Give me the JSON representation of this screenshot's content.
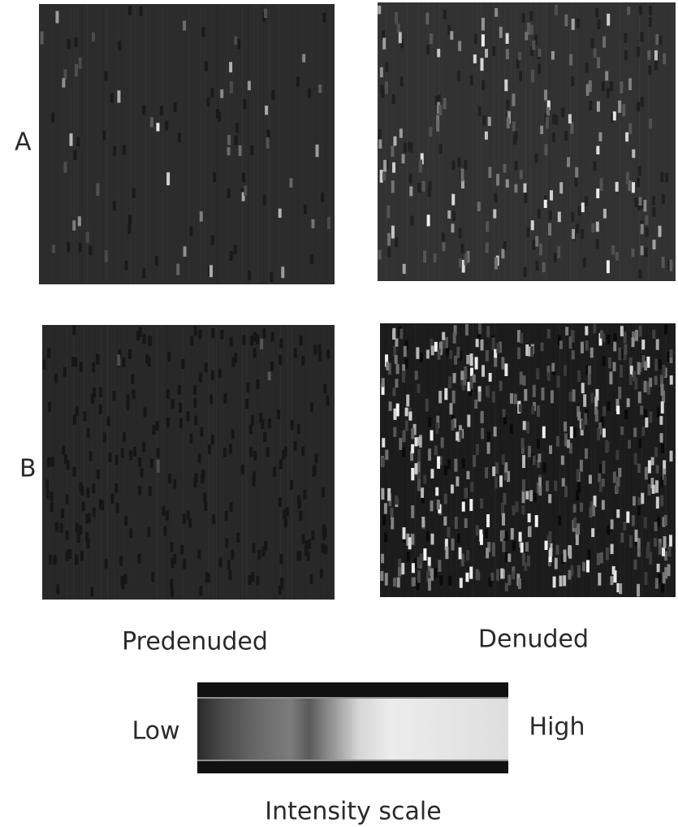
{
  "rows": [
    {
      "label": "A"
    },
    {
      "label": "B"
    }
  ],
  "columns": [
    "Predenuded",
    "Denuded"
  ],
  "scale": {
    "low": "Low",
    "high": "High",
    "title": "Intensity scale"
  }
}
